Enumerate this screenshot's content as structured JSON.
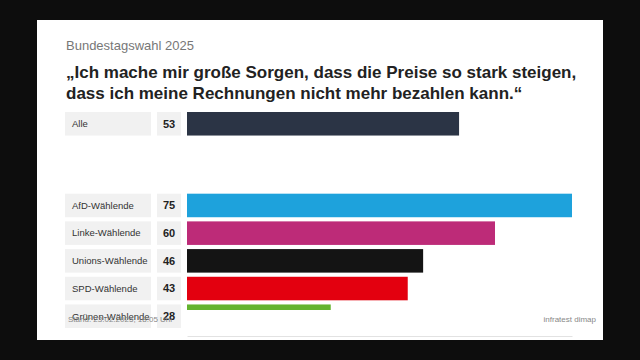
{
  "chart_data": {
    "type": "bar",
    "orientation": "horizontal",
    "subtitle": "Bundestagswahl 2025",
    "title": "„Ich mache mir große Sorgen, dass die Preise so stark steigen, dass ich meine Rechnungen nicht mehr bezahlen kann.“",
    "categories": [
      "Alle",
      "AfD-Wählende",
      "Linke-Wählende",
      "Unions-Wählende",
      "SPD-Wählende",
      "Grünen-Wählende"
    ],
    "values": [
      53,
      75,
      60,
      46,
      43,
      28
    ],
    "colors": [
      "#2b3445",
      "#1ea2dc",
      "#bd2b78",
      "#141414",
      "#e3000f",
      "#64b32e"
    ],
    "xlim": [
      0,
      75
    ],
    "xticks": [],
    "tick_labels": false,
    "grid": false,
    "data_labels": true,
    "annotations": [
      "Stand: 23.02.2025, 18:05 Uhr",
      "infratest dimap"
    ]
  }
}
